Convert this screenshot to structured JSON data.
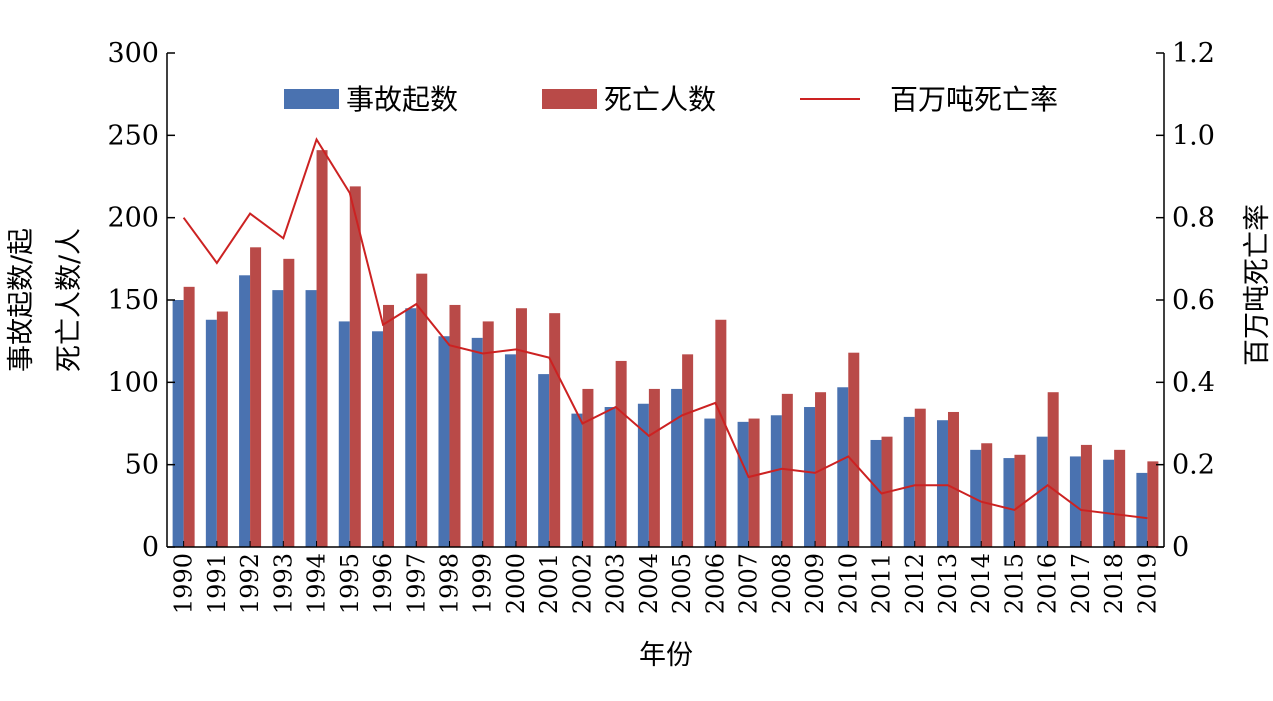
{
  "chart_data": {
    "type": "bar",
    "categories": [
      "1990",
      "1991",
      "1992",
      "1993",
      "1994",
      "1995",
      "1996",
      "1997",
      "1998",
      "1999",
      "2000",
      "2001",
      "2002",
      "2003",
      "2004",
      "2005",
      "2006",
      "2007",
      "2008",
      "2009",
      "2010",
      "2011",
      "2012",
      "2013",
      "2014",
      "2015",
      "2016",
      "2017",
      "2018",
      "2019"
    ],
    "series": [
      {
        "name": "事故起数",
        "type": "bar",
        "axis": "left",
        "color": "#4a72b0",
        "values": [
          150,
          138,
          165,
          156,
          156,
          137,
          131,
          145,
          128,
          127,
          117,
          105,
          81,
          85,
          87,
          96,
          78,
          76,
          80,
          85,
          97,
          65,
          79,
          77,
          59,
          54,
          67,
          55,
          53,
          45
        ]
      },
      {
        "name": "死亡人数",
        "type": "bar",
        "axis": "left",
        "color": "#b94a48",
        "values": [
          158,
          143,
          182,
          175,
          241,
          219,
          147,
          166,
          147,
          137,
          145,
          142,
          96,
          113,
          96,
          117,
          138,
          78,
          93,
          94,
          118,
          67,
          84,
          82,
          63,
          56,
          94,
          62,
          59,
          52
        ]
      },
      {
        "name": "百万吨死亡率",
        "type": "line",
        "axis": "right",
        "color": "#cc2222",
        "values": [
          0.8,
          0.69,
          0.81,
          0.75,
          0.99,
          0.86,
          0.54,
          0.59,
          0.49,
          0.47,
          0.48,
          0.46,
          0.3,
          0.34,
          0.27,
          0.32,
          0.35,
          0.17,
          0.19,
          0.18,
          0.22,
          0.13,
          0.15,
          0.15,
          0.11,
          0.09,
          0.15,
          0.09,
          0.08,
          0.07
        ]
      }
    ],
    "xlabel": "年份",
    "ylabel_left_line1": "事故起数/起",
    "ylabel_left_line2": "死亡人数/人",
    "ylabel_right": "百万吨死亡率",
    "ylim_left": [
      0,
      300
    ],
    "yticks_left": [
      "0",
      "50",
      "100",
      "150",
      "200",
      "250",
      "300"
    ],
    "ylim_right": [
      0,
      1.2
    ],
    "yticks_right": [
      "0",
      "0.2",
      "0.4",
      "0.6",
      "0.8",
      "1.0",
      "1.2"
    ],
    "legend": [
      "事故起数",
      "死亡人数",
      "百万吨死亡率"
    ],
    "legend_position": "top",
    "grid": false
  }
}
